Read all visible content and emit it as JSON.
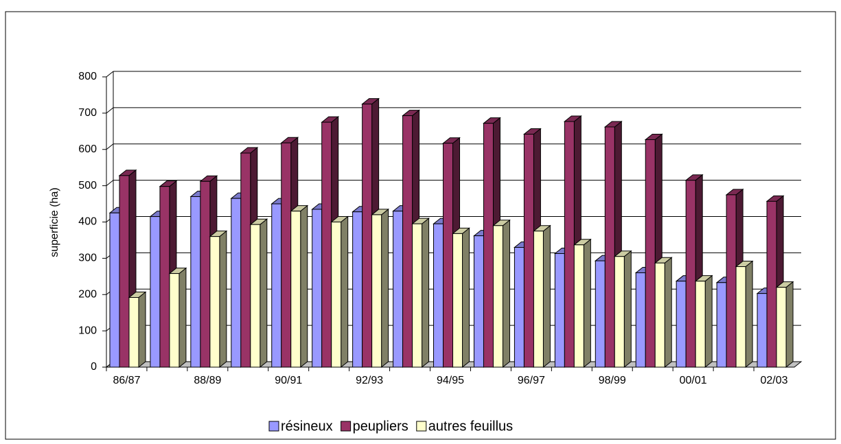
{
  "chart_data": {
    "type": "bar3d",
    "y_label": "superficie (ha)",
    "categories": [
      "86/87",
      null,
      "88/89",
      null,
      "90/91",
      null,
      "92/93",
      null,
      "94/95",
      null,
      "96/97",
      null,
      "98/99",
      null,
      "00/01",
      null,
      "02/03"
    ],
    "series": [
      {
        "name": "résineux",
        "color": "#9999ff",
        "values": [
          425,
          415,
          470,
          465,
          450,
          435,
          428,
          430,
          395,
          362,
          330,
          313,
          293,
          260,
          237,
          233,
          203
        ]
      },
      {
        "name": "peupliers",
        "color": "#993366",
        "values": [
          528,
          498,
          512,
          590,
          618,
          675,
          725,
          693,
          617,
          672,
          642,
          677,
          662,
          627,
          515,
          475,
          457
        ]
      },
      {
        "name": "autres feuillus",
        "color": "#ffffcc",
        "values": [
          192,
          258,
          360,
          393,
          430,
          400,
          420,
          395,
          368,
          390,
          375,
          337,
          305,
          287,
          237,
          277,
          220
        ]
      }
    ],
    "ylim": [
      0,
      800
    ],
    "yticks": [
      0,
      100,
      200,
      300,
      400,
      500,
      600,
      700,
      800
    ],
    "grid": true,
    "legend": "bottom"
  }
}
